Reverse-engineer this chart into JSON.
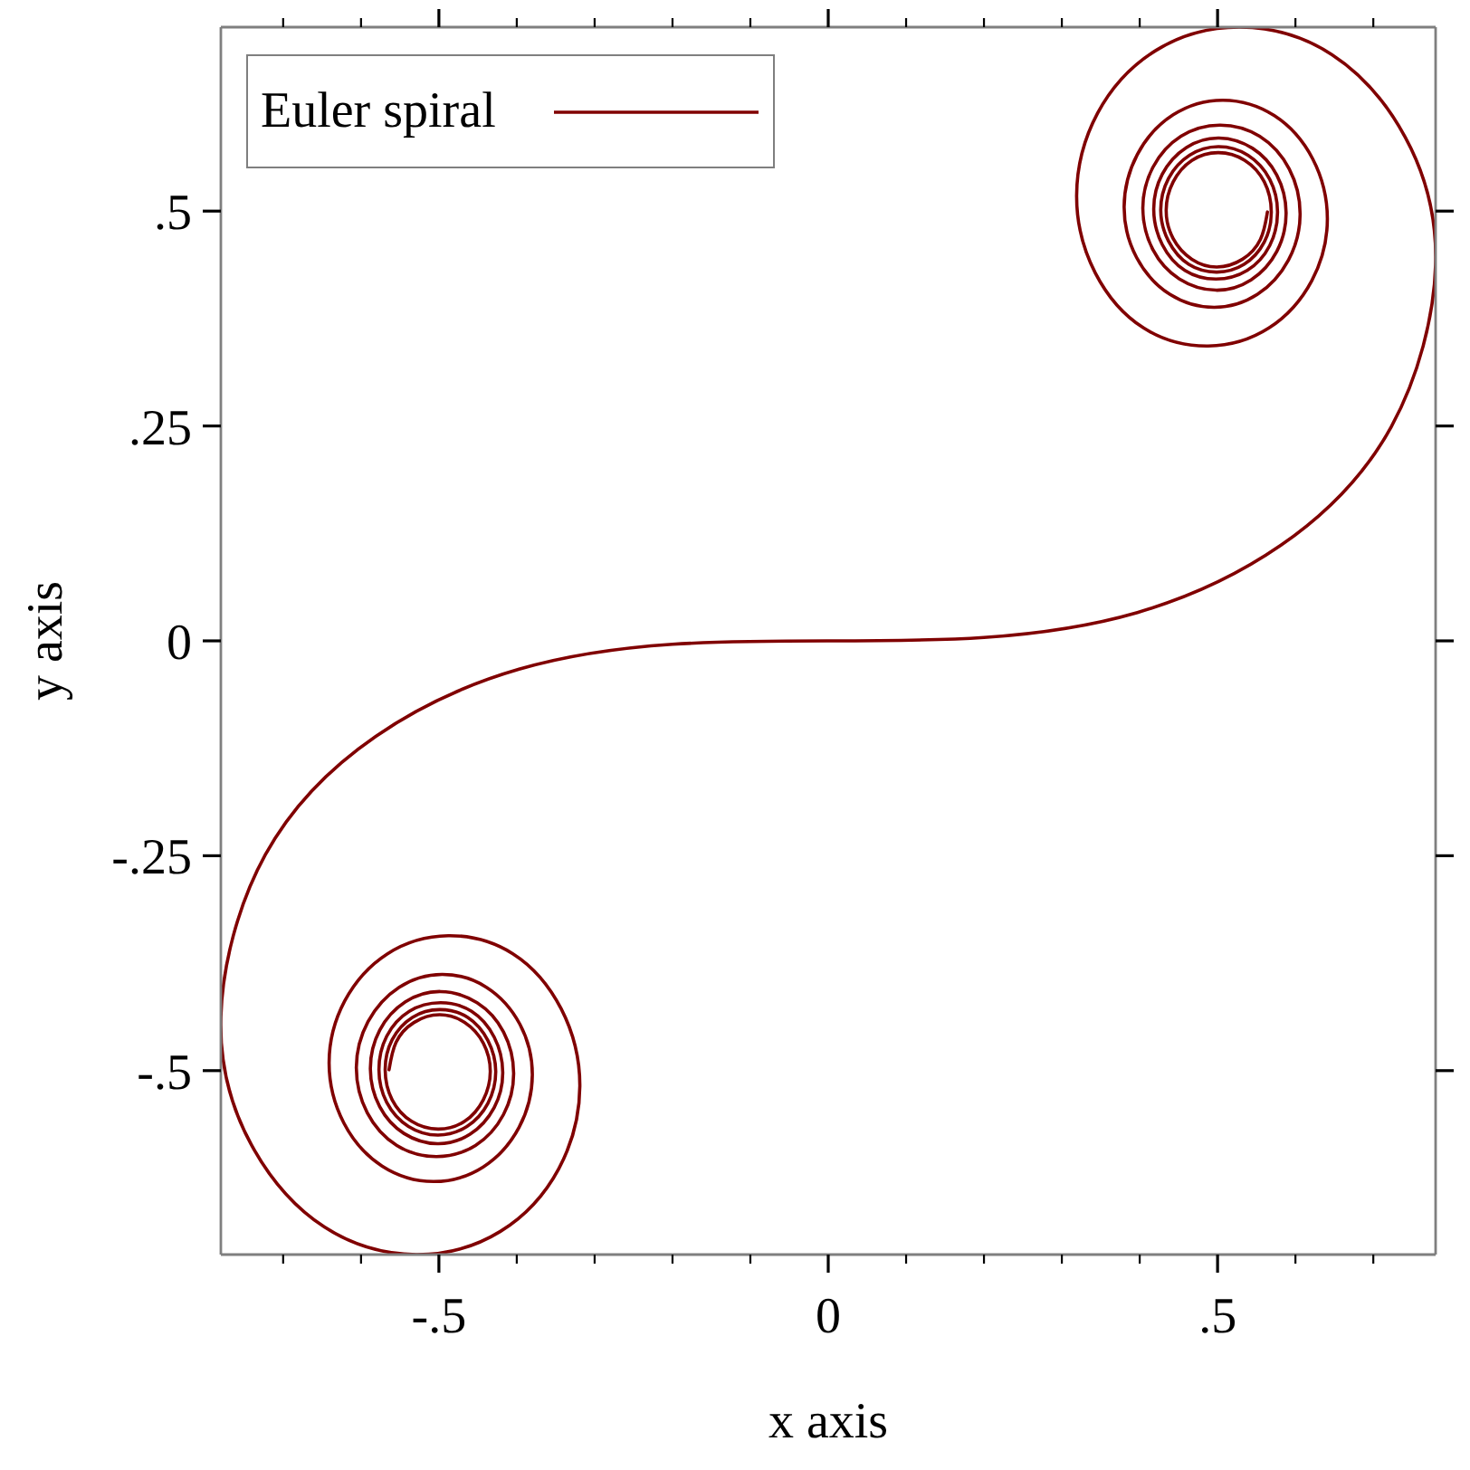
{
  "chart_data": {
    "type": "line",
    "xlabel": "x axis",
    "ylabel": "y axis",
    "xlim": [
      -0.78,
      0.78
    ],
    "ylim": [
      -0.714,
      0.714
    ],
    "xticks": [
      {
        "value": -0.7,
        "label": null
      },
      {
        "value": -0.6,
        "label": null
      },
      {
        "value": -0.5,
        "label": "-.5"
      },
      {
        "value": -0.4,
        "label": null
      },
      {
        "value": -0.3,
        "label": null
      },
      {
        "value": -0.2,
        "label": null
      },
      {
        "value": -0.1,
        "label": null
      },
      0,
      {
        "value": 0.1,
        "label": null
      },
      {
        "value": 0.2,
        "label": null
      },
      {
        "value": 0.3,
        "label": null
      },
      {
        "value": 0.4,
        "label": null
      },
      {
        "value": 0.5,
        "label": ".5"
      },
      {
        "value": 0.6,
        "label": null
      },
      {
        "value": 0.7,
        "label": null
      }
    ],
    "yticks": [
      {
        "value": -0.5,
        "label": "-.5"
      },
      {
        "value": -0.25,
        "label": "-.25"
      },
      0,
      {
        "value": 0.25,
        "label": ".25"
      },
      {
        "value": 0.5,
        "label": ".5"
      }
    ],
    "legend": "top left",
    "series": [
      {
        "name": "Euler spiral",
        "color": "#800000",
        "x": [
          -0.564,
          -0.555,
          -0.532,
          -0.499,
          -0.467,
          -0.443,
          -0.434,
          -0.443,
          -0.467,
          -0.501,
          -0.535,
          -0.56,
          -0.569,
          -0.56,
          -0.534,
          -0.499,
          -0.463,
          -0.437,
          -0.427,
          -0.437,
          -0.464,
          -0.501,
          -0.539,
          -0.567,
          -0.577,
          -0.567,
          -0.538,
          -0.498,
          -0.458,
          -0.429,
          -0.418,
          -0.429,
          -0.46,
          -0.502,
          -0.545,
          -0.576,
          -0.588,
          -0.576,
          -0.543,
          -0.498,
          -0.451,
          -0.417,
          -0.404,
          -0.417,
          -0.453,
          -0.503,
          -0.554,
          -0.592,
          -0.606,
          -0.591,
          -0.551,
          -0.496,
          -0.439,
          -0.396,
          -0.38,
          -0.397,
          -0.443,
          -0.507,
          -0.573,
          -0.622,
          -0.641,
          -0.621,
          -0.566,
          -0.488,
          -0.405,
          -0.343,
          -0.319,
          -0.346,
          -0.421,
          -0.529,
          -0.647,
          -0.741,
          -0.78,
          -0.723,
          -0.581,
          -0.397,
          -0.2,
          0,
          0.2,
          0.397,
          0.581,
          0.723,
          0.78,
          0.741,
          0.647,
          0.529,
          0.421,
          0.346,
          0.319,
          0.343,
          0.405,
          0.488,
          0.566,
          0.621,
          0.641,
          0.622,
          0.573,
          0.507,
          0.443,
          0.397,
          0.38,
          0.396,
          0.439,
          0.496,
          0.551,
          0.591,
          0.606,
          0.592,
          0.554,
          0.503,
          0.453,
          0.417,
          0.404,
          0.417,
          0.451,
          0.498,
          0.543,
          0.576,
          0.588,
          0.576,
          0.545,
          0.502,
          0.46,
          0.429,
          0.418,
          0.429,
          0.458,
          0.498,
          0.538,
          0.567,
          0.577,
          0.567,
          0.539,
          0.501,
          0.464,
          0.437,
          0.427,
          0.437,
          0.463,
          0.499,
          0.534,
          0.56,
          0.569,
          0.56,
          0.535,
          0.501,
          0.467,
          0.443,
          0.434,
          0.443,
          0.467,
          0.499,
          0.532,
          0.555,
          0.564
        ],
        "values": [
          -0.499,
          -0.467,
          -0.444,
          -0.435,
          -0.444,
          -0.468,
          -0.501,
          -0.534,
          -0.559,
          -0.568,
          -0.559,
          -0.534,
          -0.499,
          -0.464,
          -0.438,
          -0.429,
          -0.438,
          -0.465,
          -0.501,
          -0.538,
          -0.565,
          -0.575,
          -0.565,
          -0.537,
          -0.499,
          -0.46,
          -0.431,
          -0.421,
          -0.431,
          -0.461,
          -0.502,
          -0.543,
          -0.574,
          -0.585,
          -0.573,
          -0.542,
          -0.498,
          -0.453,
          -0.42,
          -0.408,
          -0.421,
          -0.455,
          -0.503,
          -0.551,
          -0.587,
          -0.6,
          -0.587,
          -0.549,
          -0.496,
          -0.443,
          -0.403,
          -0.388,
          -0.403,
          -0.446,
          -0.505,
          -0.566,
          -0.612,
          -0.629,
          -0.611,
          -0.561,
          -0.491,
          -0.419,
          -0.364,
          -0.343,
          -0.364,
          -0.428,
          -0.518,
          -0.614,
          -0.687,
          -0.714,
          -0.682,
          -0.586,
          -0.438,
          -0.249,
          -0.111,
          -0.033,
          -0.004,
          0,
          0.004,
          0.033,
          0.111,
          0.249,
          0.438,
          0.586,
          0.682,
          0.714,
          0.687,
          0.614,
          0.518,
          0.428,
          0.364,
          0.343,
          0.364,
          0.419,
          0.491,
          0.561,
          0.611,
          0.629,
          0.612,
          0.566,
          0.505,
          0.446,
          0.403,
          0.388,
          0.403,
          0.443,
          0.496,
          0.549,
          0.587,
          0.6,
          0.587,
          0.551,
          0.503,
          0.455,
          0.421,
          0.408,
          0.42,
          0.453,
          0.498,
          0.542,
          0.573,
          0.585,
          0.574,
          0.543,
          0.502,
          0.461,
          0.431,
          0.421,
          0.431,
          0.46,
          0.499,
          0.537,
          0.565,
          0.575,
          0.565,
          0.538,
          0.501,
          0.465,
          0.438,
          0.429,
          0.438,
          0.464,
          0.499,
          0.534,
          0.559,
          0.568,
          0.559,
          0.534,
          0.501,
          0.468,
          0.444,
          0.435,
          0.444,
          0.467,
          0.499
        ]
      }
    ]
  }
}
